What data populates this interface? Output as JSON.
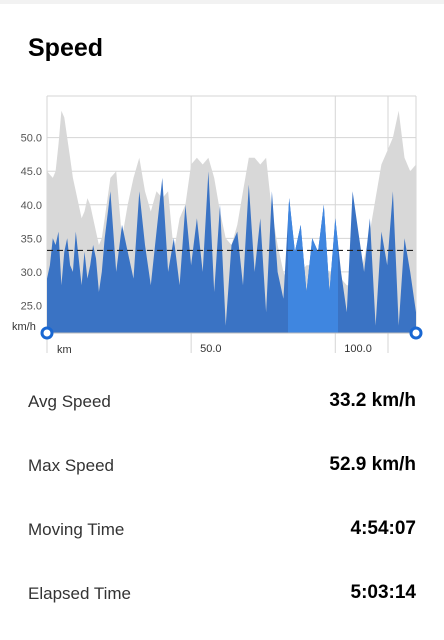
{
  "section": {
    "title": "Speed"
  },
  "colors": {
    "elevation": "#d8d8d8",
    "speed": "#3a73c4",
    "speed_highlight": "#3f86e0",
    "average_line": "#222222",
    "grid": "#d5d5d5",
    "marker": "#1967d2"
  },
  "chart_data": {
    "type": "area",
    "title": "",
    "xlabel": "km",
    "ylabel": "km/h",
    "ylim": [
      20.9,
      56.2
    ],
    "xlim": [
      0,
      128
    ],
    "y_ticks": [
      "25.0",
      "30.0",
      "35.0",
      "40.0",
      "45.0",
      "50.0"
    ],
    "y_tick_values": [
      25,
      30,
      35,
      40,
      45,
      50
    ],
    "x_ticks": [
      "50.0",
      "100.0"
    ],
    "x_tick_values": [
      50,
      100
    ],
    "average_line": 33.2,
    "grid": true,
    "series": [
      {
        "kind": "elevation-profile",
        "x": [
          0,
          1,
          2,
          3,
          4,
          5,
          6,
          7,
          8,
          9,
          10,
          11,
          12,
          13,
          14,
          15,
          16,
          17,
          18,
          19,
          20,
          22,
          24,
          26,
          28,
          30,
          32,
          34,
          36,
          38,
          40,
          42,
          44,
          46,
          48,
          50,
          52,
          54,
          56,
          58,
          60,
          62,
          64,
          66,
          68,
          70,
          72,
          74,
          76,
          78,
          80,
          82,
          84,
          86,
          88,
          90,
          92,
          94,
          96,
          98,
          100,
          102,
          104,
          106,
          108,
          110,
          112,
          114,
          116,
          118,
          120,
          122,
          124,
          126,
          128
        ],
        "values": [
          45,
          44.5,
          44,
          45,
          49,
          54,
          53,
          50,
          47,
          44,
          42,
          40,
          38,
          39,
          41,
          40,
          38,
          36,
          34,
          35,
          38,
          44,
          45,
          35,
          40,
          44,
          47,
          42,
          39,
          42,
          41,
          42,
          33,
          38,
          40,
          46,
          47,
          46,
          47,
          44,
          39,
          35,
          34,
          37,
          42,
          47,
          47,
          46,
          47,
          39,
          34,
          30,
          28,
          29,
          30,
          31,
          31,
          30,
          29,
          30,
          30,
          29,
          28,
          28,
          29,
          32,
          36,
          41,
          46,
          48,
          50,
          54,
          47,
          45,
          46
        ]
      },
      {
        "kind": "speed",
        "x": [
          0,
          1,
          2,
          3,
          4,
          5,
          6,
          7,
          8,
          9,
          10,
          11,
          12,
          13,
          14,
          15,
          16,
          17,
          18,
          19,
          20,
          22,
          24,
          26,
          28,
          30,
          32,
          34,
          36,
          38,
          40,
          42,
          44,
          46,
          48,
          50,
          52,
          54,
          56,
          58,
          60,
          62,
          64,
          66,
          68,
          70,
          72,
          74,
          76,
          78,
          80,
          82,
          84,
          86,
          88,
          90,
          92,
          94,
          96,
          98,
          100,
          102,
          104,
          106,
          108,
          110,
          112,
          114,
          116,
          118,
          120,
          122,
          124,
          126,
          128
        ],
        "values": [
          29,
          31,
          35,
          34,
          36,
          28,
          33,
          35,
          31,
          30,
          36,
          32,
          28,
          33,
          29,
          31,
          34,
          32,
          27,
          30,
          35,
          42,
          30,
          37,
          33,
          29,
          42,
          34,
          28,
          36,
          44,
          30,
          35,
          28,
          40,
          31,
          38,
          30,
          45,
          27,
          40,
          22,
          34,
          36,
          28,
          43,
          30,
          38,
          24,
          42,
          30,
          26,
          41,
          33,
          37,
          27,
          35,
          33,
          40,
          27,
          38,
          30,
          24,
          42,
          36,
          30,
          38,
          22,
          36,
          31,
          42,
          22,
          35,
          30,
          24
        ]
      }
    ]
  },
  "stats": [
    {
      "label": "Avg Speed",
      "value": "33.2 km/h"
    },
    {
      "label": "Max Speed",
      "value": "52.9 km/h"
    },
    {
      "label": "Moving Time",
      "value": "4:54:07"
    },
    {
      "label": "Elapsed Time",
      "value": "5:03:14"
    }
  ]
}
